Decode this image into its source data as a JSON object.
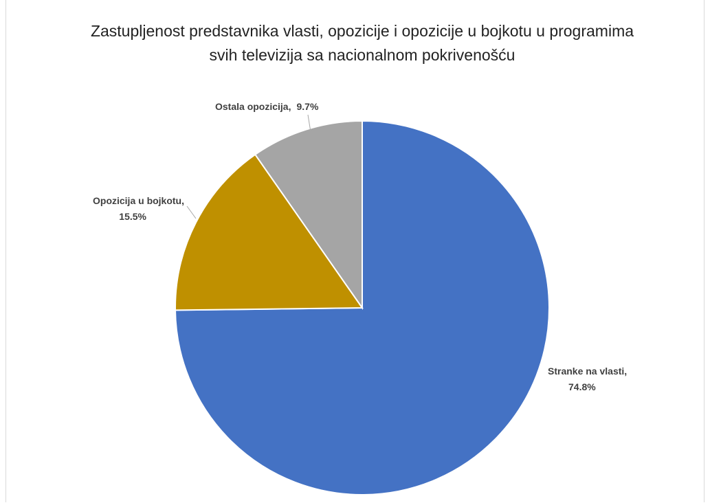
{
  "chart_data": {
    "type": "pie",
    "title": "Zastupljenost predstavnika vlasti, opozicije i opozicije u bojkotu u programima svih televizija sa nacionalnom pokrivenošću",
    "categories": [
      "Stranke na vlasti,",
      "Opozicija  u bojkotu,",
      "Ostala opozicija,"
    ],
    "values": [
      74.8,
      15.5,
      9.7
    ],
    "value_labels": [
      "74.8%",
      "15.5%",
      "9.7%"
    ],
    "colors": [
      "#4472c4",
      "#bf9000",
      "#a5a5a5"
    ]
  }
}
